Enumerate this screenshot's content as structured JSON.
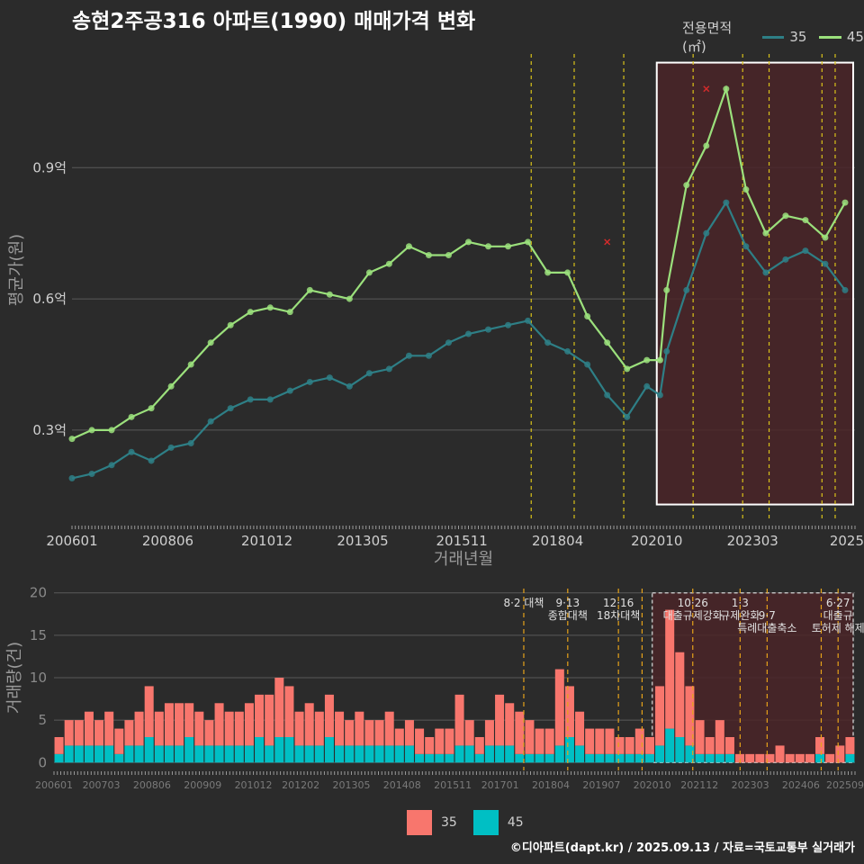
{
  "title": "송현2주공316 아파트(1990) 매매가격 변화",
  "footer": "©디아파트(dapt.kr) / 2025.09.13 / 자료=국토교통부 실거래가",
  "legend_top": {
    "title": "전용면적(㎡)",
    "items": [
      {
        "label": "35",
        "color": "#2e7f86"
      },
      {
        "label": "45",
        "color": "#9be07c"
      }
    ]
  },
  "legend_bottom": {
    "items": [
      {
        "label": "35",
        "color": "#f8766d"
      },
      {
        "label": "45",
        "color": "#00bfc4"
      }
    ]
  },
  "colors": {
    "bg": "#2b2b2b",
    "grid": "#5a5a5a",
    "highlight_fill": "#4a2428",
    "policy_line": "#d9c21a",
    "bar_35": "#f8766d",
    "bar_45": "#00bfc4",
    "line_35": "#2e7f86",
    "line_45": "#9be07c",
    "marker_x": "#d22b2b"
  },
  "chart_data": [
    {
      "type": "line",
      "title": "송현2주공316 아파트(1990) 매매가격 변화",
      "xlabel": "거래년월",
      "ylabel": "평균가(원)",
      "x_tick_labels": [
        "200601",
        "200806",
        "201012",
        "201305",
        "201511",
        "201804",
        "202010",
        "202303",
        "2025"
      ],
      "x_tick_values": [
        2006.0,
        2008.4167,
        2010.9167,
        2013.3333,
        2015.8333,
        2018.25,
        2020.75,
        2023.1667,
        2025.0
      ],
      "xlim": [
        2006.0,
        2025.75
      ],
      "y_tick_labels": [
        "0.3억",
        "0.6억",
        "0.9억"
      ],
      "y_tick_values": [
        0.3,
        0.6,
        0.9
      ],
      "ylim": [
        0.09,
        1.17
      ],
      "highlight_range": [
        2020.75,
        2025.75
      ],
      "policy_lines": [
        2017.583,
        2018.667,
        2019.917,
        2021.667,
        2022.917,
        2023.583,
        2024.917,
        2025.25
      ],
      "x_markers": [
        {
          "x": 2019.5,
          "y": 0.73
        },
        {
          "x": 2022.0,
          "y": 1.08
        }
      ],
      "series": [
        {
          "name": "35",
          "points": [
            [
              2006.0,
              0.19
            ],
            [
              2006.5,
              0.2
            ],
            [
              2007.0,
              0.22
            ],
            [
              2007.5,
              0.25
            ],
            [
              2008.0,
              0.23
            ],
            [
              2008.5,
              0.26
            ],
            [
              2009.0,
              0.27
            ],
            [
              2009.5,
              0.32
            ],
            [
              2010.0,
              0.35
            ],
            [
              2010.5,
              0.37
            ],
            [
              2011.0,
              0.37
            ],
            [
              2011.5,
              0.39
            ],
            [
              2012.0,
              0.41
            ],
            [
              2012.5,
              0.42
            ],
            [
              2013.0,
              0.4
            ],
            [
              2013.5,
              0.43
            ],
            [
              2014.0,
              0.44
            ],
            [
              2014.5,
              0.47
            ],
            [
              2015.0,
              0.47
            ],
            [
              2015.5,
              0.5
            ],
            [
              2016.0,
              0.52
            ],
            [
              2016.5,
              0.53
            ],
            [
              2017.0,
              0.54
            ],
            [
              2017.5,
              0.55
            ],
            [
              2018.0,
              0.5
            ],
            [
              2018.5,
              0.48
            ],
            [
              2019.0,
              0.45
            ],
            [
              2019.5,
              0.38
            ],
            [
              2020.0,
              0.33
            ],
            [
              2020.5,
              0.4
            ],
            [
              2020.833,
              0.38
            ],
            [
              2021.0,
              0.48
            ],
            [
              2021.5,
              0.62
            ],
            [
              2022.0,
              0.75
            ],
            [
              2022.5,
              0.82
            ],
            [
              2023.0,
              0.72
            ],
            [
              2023.5,
              0.66
            ],
            [
              2024.0,
              0.69
            ],
            [
              2024.5,
              0.71
            ],
            [
              2025.0,
              0.68
            ],
            [
              2025.5,
              0.62
            ]
          ]
        },
        {
          "name": "45",
          "points": [
            [
              2006.0,
              0.28
            ],
            [
              2006.5,
              0.3
            ],
            [
              2007.0,
              0.3
            ],
            [
              2007.5,
              0.33
            ],
            [
              2008.0,
              0.35
            ],
            [
              2008.5,
              0.4
            ],
            [
              2009.0,
              0.45
            ],
            [
              2009.5,
              0.5
            ],
            [
              2010.0,
              0.54
            ],
            [
              2010.5,
              0.57
            ],
            [
              2011.0,
              0.58
            ],
            [
              2011.5,
              0.57
            ],
            [
              2012.0,
              0.62
            ],
            [
              2012.5,
              0.61
            ],
            [
              2013.0,
              0.6
            ],
            [
              2013.5,
              0.66
            ],
            [
              2014.0,
              0.68
            ],
            [
              2014.5,
              0.72
            ],
            [
              2015.0,
              0.7
            ],
            [
              2015.5,
              0.7
            ],
            [
              2016.0,
              0.73
            ],
            [
              2016.5,
              0.72
            ],
            [
              2017.0,
              0.72
            ],
            [
              2017.5,
              0.73
            ],
            [
              2018.0,
              0.66
            ],
            [
              2018.5,
              0.66
            ],
            [
              2019.0,
              0.56
            ],
            [
              2019.5,
              0.5
            ],
            [
              2020.0,
              0.44
            ],
            [
              2020.5,
              0.46
            ],
            [
              2020.833,
              0.46
            ],
            [
              2021.0,
              0.62
            ],
            [
              2021.5,
              0.86
            ],
            [
              2022.0,
              0.95
            ],
            [
              2022.5,
              1.08
            ],
            [
              2023.0,
              0.85
            ],
            [
              2023.5,
              0.75
            ],
            [
              2024.0,
              0.79
            ],
            [
              2024.5,
              0.78
            ],
            [
              2025.0,
              0.74
            ],
            [
              2025.5,
              0.82
            ]
          ]
        }
      ]
    },
    {
      "type": "bar",
      "xlabel": "",
      "ylabel": "거래량(건)",
      "x_tick_labels": [
        "200601",
        "200703",
        "200806",
        "200909",
        "201012",
        "201202",
        "201305",
        "201408",
        "201511",
        "201701",
        "201804",
        "201907",
        "202010",
        "202112",
        "202303",
        "202406",
        "202509"
      ],
      "x_tick_values": [
        2006.0,
        2007.1667,
        2008.4167,
        2009.6667,
        2010.9167,
        2012.0833,
        2013.3333,
        2014.5833,
        2015.8333,
        2017.0,
        2018.25,
        2019.5,
        2020.75,
        2021.9167,
        2023.1667,
        2024.4167,
        2025.6667
      ],
      "xlim": [
        2006.0,
        2025.75
      ],
      "y_tick_labels": [
        "0",
        "5",
        "10",
        "15",
        "20"
      ],
      "y_tick_values": [
        0,
        5,
        10,
        15,
        20
      ],
      "ylim": [
        -0.5,
        20.5
      ],
      "highlight_range": [
        2020.75,
        2025.75
      ],
      "policy_lines": [
        2017.583,
        2018.667,
        2019.917,
        2020.5,
        2021.75,
        2022.917,
        2023.583,
        2024.917,
        2025.333
      ],
      "annotations": [
        {
          "x": 2017.583,
          "lines": [
            "8·2 대책"
          ]
        },
        {
          "x": 2018.667,
          "lines": [
            "9·13",
            "종합대책"
          ]
        },
        {
          "x": 2019.917,
          "lines": [
            "12·16",
            "18차대책"
          ]
        },
        {
          "x": 2021.75,
          "lines": [
            "10·26",
            "대출규제강화"
          ]
        },
        {
          "x": 2022.917,
          "lines": [
            "1·3",
            "규제완화"
          ]
        },
        {
          "x": 2023.583,
          "lines": [
            "",
            "9·7",
            "특례대출축소"
          ]
        },
        {
          "x": 2025.333,
          "lines": [
            "6·27",
            "대출규",
            "토허제 해제"
          ]
        }
      ],
      "stacked": true,
      "series": [
        {
          "name": "35",
          "values": [
            2,
            3,
            3,
            4,
            3,
            4,
            3,
            3,
            4,
            6,
            4,
            5,
            5,
            4,
            4,
            3,
            5,
            4,
            4,
            5,
            5,
            6,
            7,
            6,
            4,
            5,
            4,
            5,
            4,
            3,
            4,
            3,
            3,
            4,
            2,
            3,
            3,
            2,
            3,
            3,
            6,
            3,
            2,
            3,
            6,
            5,
            5,
            4,
            3,
            3,
            9,
            6,
            4,
            3,
            3,
            3,
            2,
            2,
            3,
            2,
            7,
            14,
            10,
            7,
            4,
            2,
            4,
            2,
            1,
            1,
            1,
            1,
            2,
            1,
            1,
            1,
            2,
            1,
            2,
            2
          ]
        },
        {
          "name": "45",
          "values": [
            1,
            2,
            2,
            2,
            2,
            2,
            1,
            2,
            2,
            3,
            2,
            2,
            2,
            3,
            2,
            2,
            2,
            2,
            2,
            2,
            3,
            2,
            3,
            3,
            2,
            2,
            2,
            3,
            2,
            2,
            2,
            2,
            2,
            2,
            2,
            2,
            1,
            1,
            1,
            1,
            2,
            2,
            1,
            2,
            2,
            2,
            1,
            1,
            1,
            1,
            2,
            3,
            2,
            1,
            1,
            1,
            1,
            1,
            1,
            1,
            2,
            4,
            3,
            2,
            1,
            1,
            1,
            1,
            0,
            0,
            0,
            0,
            0,
            0,
            0,
            0,
            1,
            0,
            0,
            1
          ]
        }
      ]
    }
  ]
}
